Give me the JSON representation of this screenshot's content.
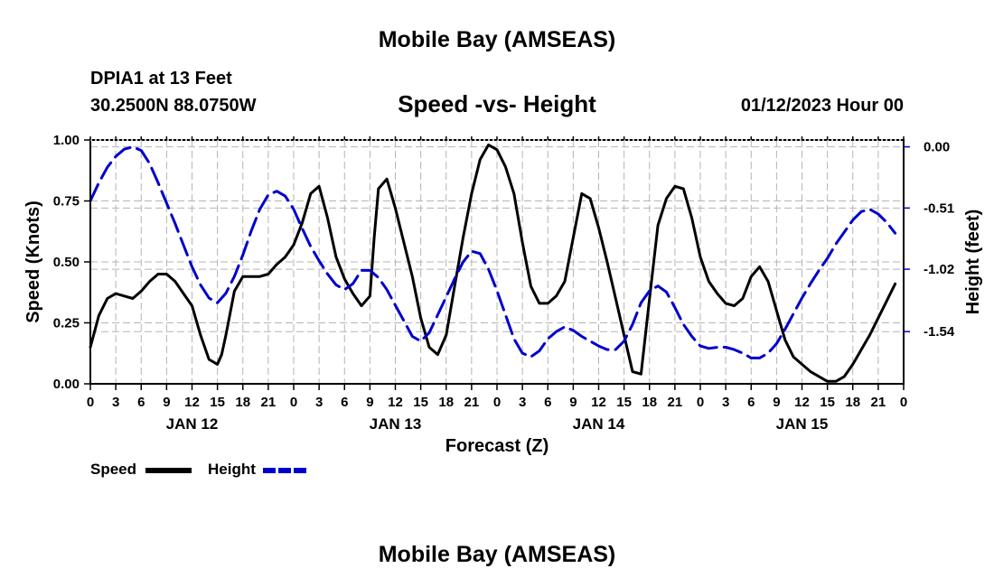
{
  "header": {
    "title": "Mobile Bay (AMSEAS)",
    "station": "DPIA1 at 13 Feet",
    "location": "30.2500N  88.0750W",
    "subtitle": "Speed -vs- Height",
    "datetime": "01/12/2023 Hour 00"
  },
  "footer": {
    "title": "Mobile Bay (AMSEAS)"
  },
  "chart_data": {
    "type": "line",
    "title": "Speed -vs- Height",
    "xlabel": "Forecast (Z)",
    "x_range_hours": [
      0,
      96
    ],
    "x_tick_step_hours": 3,
    "x_tick_labels": [
      "0",
      "3",
      "6",
      "9",
      "12",
      "15",
      "18",
      "21",
      "0",
      "3",
      "6",
      "9",
      "12",
      "15",
      "18",
      "21",
      "0",
      "3",
      "6",
      "9",
      "12",
      "15",
      "18",
      "21",
      "0",
      "3",
      "6",
      "9",
      "12",
      "15",
      "18",
      "21",
      "0"
    ],
    "day_labels": [
      {
        "label": "JAN 12",
        "hour": 12
      },
      {
        "label": "JAN 13",
        "hour": 36
      },
      {
        "label": "JAN 14",
        "hour": 60
      },
      {
        "label": "JAN 15",
        "hour": 84
      }
    ],
    "left_axis": {
      "label": "Speed (Knots)",
      "ylim": [
        0,
        1
      ],
      "ticks": [
        0,
        0.25,
        0.5,
        0.75,
        1.0
      ],
      "tick_labels": [
        "0.00",
        "0.25",
        "0.50",
        "0.75",
        "1.00"
      ]
    },
    "right_axis": {
      "label": "Height (feet)",
      "ylim": [
        -1.975,
        0.057
      ],
      "ticks": [
        0,
        -0.51,
        -1.02,
        -1.54
      ],
      "tick_labels": [
        "0.00",
        "-0.51",
        "-1.02",
        "-1.54"
      ]
    },
    "grid": true,
    "legend_position": "bottom-left",
    "series": [
      {
        "name": "Speed",
        "axis": "left",
        "color": "#000000",
        "style": "solid",
        "points": [
          [
            0,
            0.15
          ],
          [
            1,
            0.28
          ],
          [
            2,
            0.35
          ],
          [
            3,
            0.37
          ],
          [
            4,
            0.36
          ],
          [
            5,
            0.35
          ],
          [
            6,
            0.38
          ],
          [
            7,
            0.42
          ],
          [
            8,
            0.45
          ],
          [
            9,
            0.45
          ],
          [
            10,
            0.42
          ],
          [
            11,
            0.37
          ],
          [
            12,
            0.32
          ],
          [
            13,
            0.2
          ],
          [
            14,
            0.1
          ],
          [
            15,
            0.08
          ],
          [
            15.5,
            0.12
          ],
          [
            16,
            0.2
          ],
          [
            17,
            0.38
          ],
          [
            18,
            0.44
          ],
          [
            19,
            0.44
          ],
          [
            20,
            0.44
          ],
          [
            21,
            0.45
          ],
          [
            22,
            0.49
          ],
          [
            23,
            0.52
          ],
          [
            24,
            0.57
          ],
          [
            25,
            0.66
          ],
          [
            26,
            0.78
          ],
          [
            27,
            0.81
          ],
          [
            28,
            0.68
          ],
          [
            29,
            0.52
          ],
          [
            30,
            0.43
          ],
          [
            31,
            0.37
          ],
          [
            32,
            0.32
          ],
          [
            33,
            0.36
          ],
          [
            33.5,
            0.6
          ],
          [
            34,
            0.8
          ],
          [
            35,
            0.84
          ],
          [
            36,
            0.72
          ],
          [
            37,
            0.58
          ],
          [
            38,
            0.44
          ],
          [
            39,
            0.27
          ],
          [
            40,
            0.15
          ],
          [
            41,
            0.12
          ],
          [
            42,
            0.2
          ],
          [
            43,
            0.4
          ],
          [
            44,
            0.6
          ],
          [
            45,
            0.78
          ],
          [
            46,
            0.92
          ],
          [
            47,
            0.98
          ],
          [
            48,
            0.96
          ],
          [
            49,
            0.89
          ],
          [
            50,
            0.78
          ],
          [
            51,
            0.58
          ],
          [
            52,
            0.4
          ],
          [
            53,
            0.33
          ],
          [
            54,
            0.33
          ],
          [
            55,
            0.36
          ],
          [
            56,
            0.42
          ],
          [
            57,
            0.6
          ],
          [
            58,
            0.78
          ],
          [
            59,
            0.76
          ],
          [
            60,
            0.64
          ],
          [
            61,
            0.5
          ],
          [
            62,
            0.35
          ],
          [
            63,
            0.2
          ],
          [
            64,
            0.05
          ],
          [
            65,
            0.04
          ],
          [
            66,
            0.35
          ],
          [
            67,
            0.65
          ],
          [
            68,
            0.76
          ],
          [
            69,
            0.81
          ],
          [
            70,
            0.8
          ],
          [
            71,
            0.68
          ],
          [
            72,
            0.52
          ],
          [
            73,
            0.42
          ],
          [
            74,
            0.37
          ],
          [
            75,
            0.33
          ],
          [
            76,
            0.32
          ],
          [
            77,
            0.35
          ],
          [
            78,
            0.44
          ],
          [
            79,
            0.48
          ],
          [
            80,
            0.42
          ],
          [
            81,
            0.3
          ],
          [
            82,
            0.18
          ],
          [
            83,
            0.11
          ],
          [
            84,
            0.08
          ],
          [
            85,
            0.05
          ],
          [
            86,
            0.03
          ],
          [
            87,
            0.01
          ],
          [
            88,
            0.01
          ],
          [
            89,
            0.03
          ],
          [
            90,
            0.08
          ],
          [
            91,
            0.14
          ],
          [
            92,
            0.2
          ],
          [
            93,
            0.27
          ],
          [
            94,
            0.34
          ],
          [
            95,
            0.41
          ]
        ]
      },
      {
        "name": "Height",
        "axis": "right",
        "color": "#0000cc",
        "style": "dashed",
        "points": [
          [
            0,
            -0.45
          ],
          [
            1,
            -0.3
          ],
          [
            2,
            -0.17
          ],
          [
            3,
            -0.08
          ],
          [
            4,
            -0.02
          ],
          [
            5,
            0.0
          ],
          [
            6,
            -0.03
          ],
          [
            7,
            -0.14
          ],
          [
            8,
            -0.3
          ],
          [
            9,
            -0.47
          ],
          [
            10,
            -0.64
          ],
          [
            11,
            -0.82
          ],
          [
            12,
            -1.0
          ],
          [
            13,
            -1.15
          ],
          [
            14,
            -1.26
          ],
          [
            15,
            -1.3
          ],
          [
            16,
            -1.22
          ],
          [
            17,
            -1.08
          ],
          [
            18,
            -0.9
          ],
          [
            19,
            -0.7
          ],
          [
            20,
            -0.52
          ],
          [
            21,
            -0.4
          ],
          [
            22,
            -0.37
          ],
          [
            23,
            -0.41
          ],
          [
            24,
            -0.52
          ],
          [
            25,
            -0.68
          ],
          [
            26,
            -0.83
          ],
          [
            27,
            -0.95
          ],
          [
            28,
            -1.06
          ],
          [
            29,
            -1.15
          ],
          [
            30,
            -1.19
          ],
          [
            31,
            -1.14
          ],
          [
            32,
            -1.03
          ],
          [
            33,
            -1.03
          ],
          [
            34,
            -1.09
          ],
          [
            35,
            -1.19
          ],
          [
            36,
            -1.32
          ],
          [
            37,
            -1.45
          ],
          [
            38,
            -1.58
          ],
          [
            39,
            -1.62
          ],
          [
            40,
            -1.55
          ],
          [
            41,
            -1.4
          ],
          [
            42,
            -1.25
          ],
          [
            43,
            -1.1
          ],
          [
            44,
            -0.96
          ],
          [
            45,
            -0.87
          ],
          [
            46,
            -0.89
          ],
          [
            47,
            -1.02
          ],
          [
            48,
            -1.2
          ],
          [
            49,
            -1.4
          ],
          [
            50,
            -1.6
          ],
          [
            51,
            -1.72
          ],
          [
            52,
            -1.75
          ],
          [
            53,
            -1.7
          ],
          [
            54,
            -1.6
          ],
          [
            55,
            -1.54
          ],
          [
            56,
            -1.5
          ],
          [
            57,
            -1.53
          ],
          [
            58,
            -1.58
          ],
          [
            59,
            -1.62
          ],
          [
            60,
            -1.66
          ],
          [
            61,
            -1.69
          ],
          [
            62,
            -1.69
          ],
          [
            63,
            -1.62
          ],
          [
            64,
            -1.48
          ],
          [
            65,
            -1.3
          ],
          [
            66,
            -1.2
          ],
          [
            67,
            -1.16
          ],
          [
            68,
            -1.21
          ],
          [
            69,
            -1.34
          ],
          [
            70,
            -1.48
          ],
          [
            71,
            -1.58
          ],
          [
            72,
            -1.66
          ],
          [
            73,
            -1.68
          ],
          [
            74,
            -1.67
          ],
          [
            75,
            -1.67
          ],
          [
            76,
            -1.69
          ],
          [
            77,
            -1.72
          ],
          [
            78,
            -1.76
          ],
          [
            79,
            -1.76
          ],
          [
            80,
            -1.72
          ],
          [
            81,
            -1.64
          ],
          [
            82,
            -1.52
          ],
          [
            83,
            -1.39
          ],
          [
            84,
            -1.26
          ],
          [
            85,
            -1.14
          ],
          [
            86,
            -1.03
          ],
          [
            87,
            -0.93
          ],
          [
            88,
            -0.81
          ],
          [
            89,
            -0.71
          ],
          [
            90,
            -0.61
          ],
          [
            91,
            -0.54
          ],
          [
            92,
            -0.52
          ],
          [
            93,
            -0.56
          ],
          [
            94,
            -0.63
          ],
          [
            95,
            -0.72
          ]
        ]
      }
    ]
  }
}
